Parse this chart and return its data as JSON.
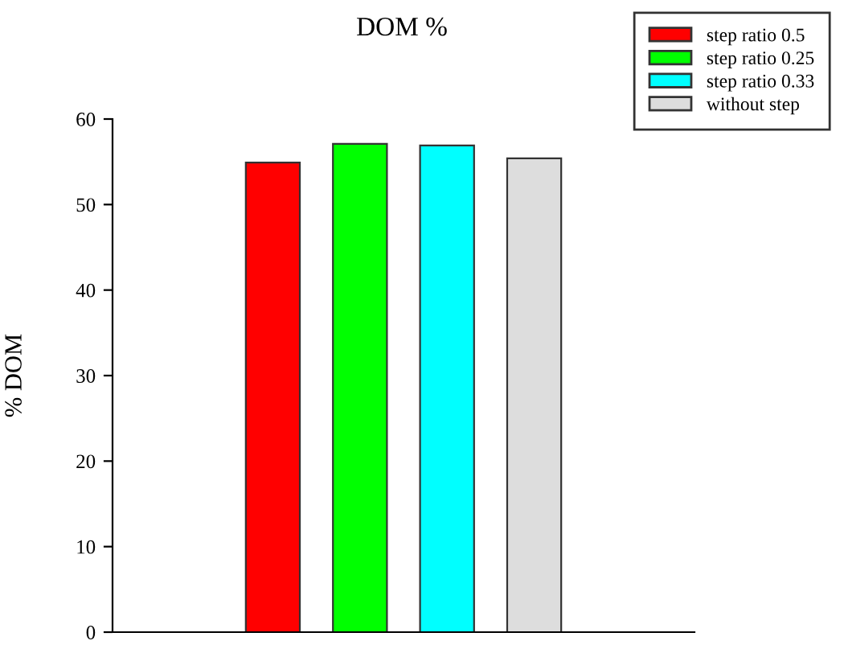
{
  "chart_data": {
    "type": "bar",
    "title": "DOM %",
    "ylabel": "% DOM",
    "categories": [
      null
    ],
    "series": [
      {
        "name": "step ratio 0.5",
        "color": "#ff0000",
        "values": [
          54.9
        ]
      },
      {
        "name": "step ratio 0.25",
        "color": "#00ff00",
        "values": [
          57.1
        ]
      },
      {
        "name": "step ratio 0.33",
        "color": "#00ffff",
        "values": [
          56.9
        ]
      },
      {
        "name": "without step",
        "color": "#dddddd",
        "values": [
          55.4
        ]
      }
    ],
    "ylim": [
      0,
      60
    ],
    "yticks": [
      0,
      10,
      20,
      30,
      40,
      50,
      60
    ],
    "grid": false,
    "legend": "top right",
    "tick_labels": "y"
  }
}
